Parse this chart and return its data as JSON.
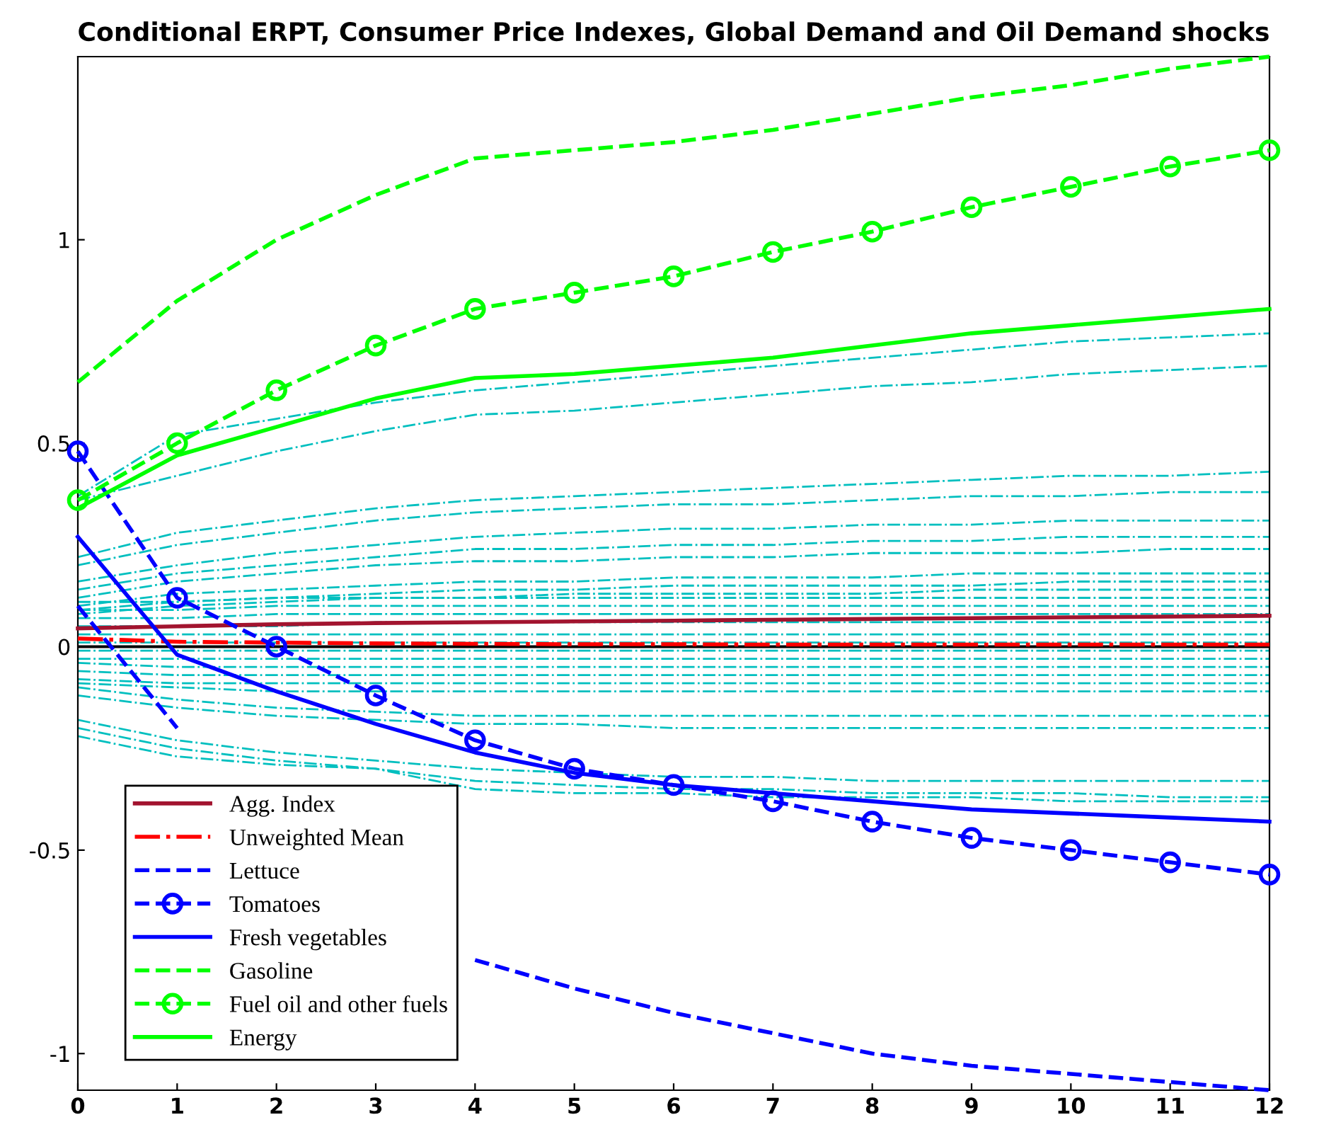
{
  "chart_data": {
    "type": "line",
    "title": "Conditional ERPT, Consumer Price Indexes, Global Demand and Oil Demand shocks",
    "x": [
      0,
      1,
      2,
      3,
      4,
      5,
      6,
      7,
      8,
      9,
      10,
      11,
      12
    ],
    "xlim": [
      0,
      12
    ],
    "xticks": [
      0,
      1,
      2,
      3,
      4,
      5,
      6,
      7,
      8,
      9,
      10,
      11,
      12
    ],
    "ylim": [
      -1.09,
      1.45
    ],
    "yticks": [
      -1,
      -0.5,
      0,
      0.5,
      1
    ],
    "grid": false,
    "legend": "bottom left",
    "ref_lines": [
      {
        "axis": "y",
        "value": 0,
        "color": "#000000",
        "line_style": "solid"
      }
    ],
    "series": [
      {
        "color": "#00bfbf",
        "line_style": "dashdot",
        "values": [
          0.37,
          0.52,
          0.56,
          0.6,
          0.63,
          0.65,
          0.67,
          0.69,
          0.71,
          0.73,
          0.75,
          0.76,
          0.77
        ]
      },
      {
        "color": "#00bfbf",
        "line_style": "dashdot",
        "values": [
          0.36,
          0.42,
          0.48,
          0.53,
          0.57,
          0.58,
          0.6,
          0.62,
          0.64,
          0.65,
          0.67,
          0.68,
          0.69
        ]
      },
      {
        "color": "#00bfbf",
        "line_style": "dashdot",
        "values": [
          0.22,
          0.28,
          0.31,
          0.34,
          0.36,
          0.37,
          0.38,
          0.39,
          0.4,
          0.41,
          0.42,
          0.42,
          0.43
        ]
      },
      {
        "color": "#00bfbf",
        "line_style": "dashdot",
        "values": [
          0.2,
          0.25,
          0.28,
          0.31,
          0.33,
          0.34,
          0.35,
          0.35,
          0.36,
          0.37,
          0.37,
          0.38,
          0.38
        ]
      },
      {
        "color": "#00bfbf",
        "line_style": "dashdot",
        "values": [
          0.16,
          0.2,
          0.23,
          0.25,
          0.27,
          0.28,
          0.29,
          0.29,
          0.3,
          0.3,
          0.31,
          0.31,
          0.31
        ]
      },
      {
        "color": "#00bfbf",
        "line_style": "dashdot",
        "values": [
          0.14,
          0.18,
          0.2,
          0.22,
          0.24,
          0.24,
          0.25,
          0.25,
          0.26,
          0.26,
          0.27,
          0.27,
          0.27
        ]
      },
      {
        "color": "#00bfbf",
        "line_style": "dashdot",
        "values": [
          0.12,
          0.16,
          0.18,
          0.2,
          0.21,
          0.21,
          0.22,
          0.22,
          0.23,
          0.23,
          0.23,
          0.24,
          0.24
        ]
      },
      {
        "color": "#00bfbf",
        "line_style": "dashdot",
        "values": [
          0.1,
          0.13,
          0.14,
          0.15,
          0.16,
          0.16,
          0.17,
          0.17,
          0.17,
          0.18,
          0.18,
          0.18,
          0.18
        ]
      },
      {
        "color": "#00bfbf",
        "line_style": "dashdot",
        "values": [
          0.09,
          0.11,
          0.12,
          0.13,
          0.14,
          0.14,
          0.15,
          0.15,
          0.15,
          0.15,
          0.16,
          0.16,
          0.16
        ]
      },
      {
        "color": "#00bfbf",
        "line_style": "dashdot",
        "values": [
          0.08,
          0.1,
          0.11,
          0.12,
          0.12,
          0.13,
          0.13,
          0.13,
          0.13,
          0.14,
          0.14,
          0.14,
          0.14
        ]
      },
      {
        "color": "#00bfbf",
        "line_style": "dashdot",
        "values": [
          0.11,
          0.11,
          0.12,
          0.12,
          0.12,
          0.12,
          0.12,
          0.12,
          0.12,
          0.12,
          0.12,
          0.12,
          0.12
        ]
      },
      {
        "color": "#00bfbf",
        "line_style": "dashdot",
        "values": [
          0.09,
          0.09,
          0.1,
          0.1,
          0.1,
          0.1,
          0.1,
          0.1,
          0.1,
          0.1,
          0.1,
          0.1,
          0.1
        ]
      },
      {
        "color": "#00bfbf",
        "line_style": "dashdot",
        "values": [
          0.07,
          0.07,
          0.08,
          0.08,
          0.08,
          0.08,
          0.08,
          0.08,
          0.08,
          0.08,
          0.08,
          0.08,
          0.08
        ]
      },
      {
        "color": "#00bfbf",
        "line_style": "dashdot",
        "values": [
          0.05,
          0.05,
          0.05,
          0.06,
          0.06,
          0.06,
          0.06,
          0.06,
          0.06,
          0.06,
          0.06,
          0.06,
          0.06
        ]
      },
      {
        "color": "#00bfbf",
        "line_style": "dashdot",
        "values": [
          0.03,
          0.03,
          0.03,
          0.03,
          0.03,
          0.03,
          0.03,
          0.03,
          0.03,
          0.03,
          0.03,
          0.03,
          0.03
        ]
      },
      {
        "color": "#00bfbf",
        "line_style": "dashdot",
        "values": [
          0.01,
          0.01,
          0.01,
          0.01,
          0.01,
          0.01,
          0.01,
          0.01,
          0.01,
          0.01,
          0.01,
          0.01,
          0.01
        ]
      },
      {
        "color": "#00bfbf",
        "line_style": "dashdot",
        "values": [
          -0.01,
          -0.01,
          -0.01,
          -0.01,
          -0.01,
          -0.01,
          -0.01,
          -0.01,
          -0.01,
          -0.01,
          -0.01,
          -0.01,
          -0.01
        ]
      },
      {
        "color": "#00bfbf",
        "line_style": "dashdot",
        "values": [
          -0.03,
          -0.03,
          -0.03,
          -0.03,
          -0.03,
          -0.03,
          -0.03,
          -0.03,
          -0.03,
          -0.03,
          -0.03,
          -0.03,
          -0.03
        ]
      },
      {
        "color": "#00bfbf",
        "line_style": "dashdot",
        "values": [
          -0.04,
          -0.05,
          -0.05,
          -0.05,
          -0.05,
          -0.05,
          -0.05,
          -0.05,
          -0.05,
          -0.05,
          -0.05,
          -0.05,
          -0.05
        ]
      },
      {
        "color": "#00bfbf",
        "line_style": "dashdot",
        "values": [
          -0.06,
          -0.07,
          -0.07,
          -0.07,
          -0.07,
          -0.07,
          -0.07,
          -0.07,
          -0.07,
          -0.07,
          -0.07,
          -0.07,
          -0.07
        ]
      },
      {
        "color": "#00bfbf",
        "line_style": "dashdot",
        "values": [
          -0.08,
          -0.09,
          -0.09,
          -0.09,
          -0.09,
          -0.09,
          -0.09,
          -0.09,
          -0.09,
          -0.09,
          -0.09,
          -0.09,
          -0.09
        ]
      },
      {
        "color": "#00bfbf",
        "line_style": "dashdot",
        "values": [
          -0.09,
          -0.1,
          -0.11,
          -0.11,
          -0.11,
          -0.11,
          -0.11,
          -0.11,
          -0.11,
          -0.11,
          -0.11,
          -0.11,
          -0.11
        ]
      },
      {
        "color": "#00bfbf",
        "line_style": "dashdot",
        "values": [
          -0.1,
          -0.13,
          -0.15,
          -0.16,
          -0.17,
          -0.17,
          -0.17,
          -0.17,
          -0.17,
          -0.17,
          -0.17,
          -0.17,
          -0.17
        ]
      },
      {
        "color": "#00bfbf",
        "line_style": "dashdot",
        "values": [
          -0.12,
          -0.15,
          -0.17,
          -0.18,
          -0.19,
          -0.19,
          -0.2,
          -0.2,
          -0.2,
          -0.2,
          -0.2,
          -0.2,
          -0.2
        ]
      },
      {
        "color": "#00bfbf",
        "line_style": "dashdot",
        "values": [
          -0.18,
          -0.23,
          -0.26,
          -0.28,
          -0.3,
          -0.31,
          -0.32,
          -0.32,
          -0.33,
          -0.33,
          -0.33,
          -0.33,
          -0.33
        ]
      },
      {
        "color": "#00bfbf",
        "line_style": "dashdot",
        "values": [
          -0.2,
          -0.25,
          -0.28,
          -0.3,
          -0.33,
          -0.34,
          -0.35,
          -0.35,
          -0.36,
          -0.36,
          -0.36,
          -0.37,
          -0.37
        ]
      },
      {
        "color": "#00bfbf",
        "line_style": "dashdot",
        "values": [
          -0.22,
          -0.27,
          -0.29,
          -0.3,
          -0.35,
          -0.36,
          -0.36,
          -0.37,
          -0.37,
          -0.37,
          -0.38,
          -0.38,
          -0.38
        ]
      },
      {
        "name": "Agg. Index",
        "color": "#a2142f",
        "line_style": "solid",
        "marker": "none",
        "values": [
          0.045,
          0.05,
          0.055,
          0.058,
          0.06,
          0.062,
          0.064,
          0.066,
          0.068,
          0.07,
          0.072,
          0.074,
          0.076
        ]
      },
      {
        "name": "Unweighted Mean",
        "color": "#ff0000",
        "line_style": "dashdot",
        "marker": "none",
        "values": [
          0.02,
          0.012,
          0.01,
          0.008,
          0.007,
          0.006,
          0.006,
          0.005,
          0.005,
          0.005,
          0.005,
          0.005,
          0.005
        ]
      },
      {
        "name": "Lettuce",
        "color": "#0000ff",
        "line_style": "dashed",
        "marker": "none",
        "values": [
          0.1,
          -0.2,
          null,
          null,
          -0.77,
          -0.84,
          -0.9,
          -0.95,
          -1.0,
          -1.03,
          -1.05,
          -1.07,
          -1.09
        ]
      },
      {
        "name": "Tomatoes",
        "color": "#0000ff",
        "line_style": "dashed",
        "marker": "circle",
        "values": [
          0.48,
          0.12,
          0.0,
          -0.12,
          -0.23,
          -0.3,
          -0.34,
          -0.38,
          -0.43,
          -0.47,
          -0.5,
          -0.53,
          -0.56
        ]
      },
      {
        "name": "Fresh vegetables",
        "color": "#0000ff",
        "line_style": "solid",
        "marker": "none",
        "values": [
          0.27,
          -0.02,
          -0.11,
          -0.19,
          -0.26,
          -0.31,
          -0.34,
          -0.36,
          -0.38,
          -0.4,
          -0.41,
          -0.42,
          -0.43
        ]
      },
      {
        "name": "Gasoline",
        "color": "#00ff00",
        "line_style": "dashed",
        "marker": "none",
        "values": [
          0.65,
          0.85,
          1.0,
          1.11,
          1.2,
          1.22,
          1.24,
          1.27,
          1.31,
          1.35,
          1.38,
          1.42,
          1.45
        ]
      },
      {
        "name": "Fuel oil and other fuels",
        "color": "#00ff00",
        "line_style": "dashed",
        "marker": "circle",
        "values": [
          0.36,
          0.5,
          0.63,
          0.74,
          0.83,
          0.87,
          0.91,
          0.97,
          1.02,
          1.08,
          1.13,
          1.18,
          1.22
        ]
      },
      {
        "name": "Energy",
        "color": "#00ff00",
        "line_style": "solid",
        "marker": "none",
        "values": [
          0.34,
          0.47,
          0.54,
          0.61,
          0.66,
          0.67,
          0.69,
          0.71,
          0.74,
          0.77,
          0.79,
          0.81,
          0.83
        ]
      }
    ]
  }
}
